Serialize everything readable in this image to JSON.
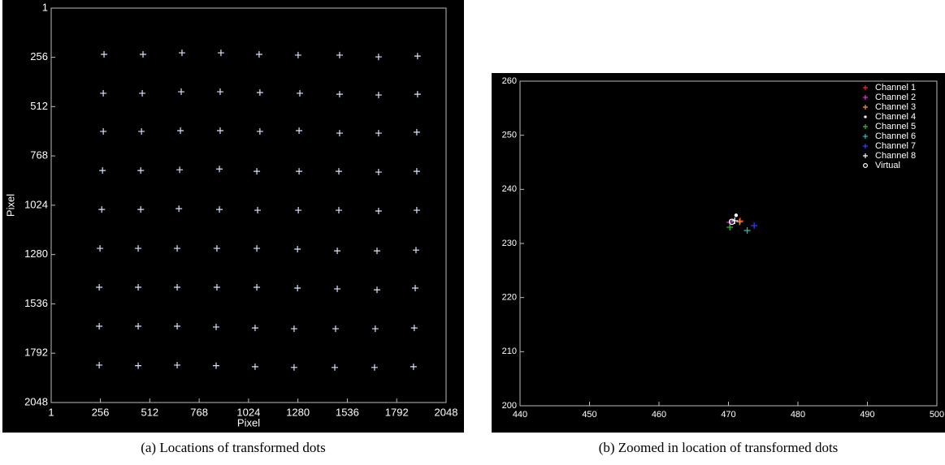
{
  "chart_data": [
    {
      "type": "scatter",
      "xlabel": "Pixel",
      "ylabel": "Pixel",
      "caption": "(a) Locations of transformed dots",
      "xlim": [
        1,
        2048
      ],
      "ylim": [
        1,
        2048
      ],
      "y_reversed": true,
      "xticks": [
        1,
        256,
        512,
        768,
        1024,
        1280,
        1536,
        1792,
        2048
      ],
      "yticks": [
        1,
        256,
        512,
        768,
        1024,
        1280,
        1536,
        1792,
        2048
      ],
      "series": [
        {
          "color": "#d6e2ff",
          "marker": "+",
          "x": [
            275,
            477,
            679,
            881,
            1079,
            1281,
            1496,
            1698,
            1900,
            271,
            473,
            675,
            877,
            1083,
            1290,
            1496,
            1698,
            1900,
            271,
            469,
            671,
            877,
            1083,
            1286,
            1496,
            1698,
            1896,
            267,
            465,
            667,
            873,
            1067,
            1286,
            1492,
            1698,
            1896,
            263,
            465,
            663,
            873,
            1071,
            1282,
            1492,
            1698,
            1896,
            254,
            452,
            654,
            860,
            1067,
            1278,
            1484,
            1690,
            1892,
            250,
            452,
            654,
            860,
            1067,
            1278,
            1484,
            1690,
            1888,
            250,
            452,
            654,
            856,
            1058,
            1260,
            1475,
            1681,
            1883,
            250,
            452,
            654,
            856,
            1058,
            1260,
            1471,
            1677,
            1879
          ],
          "y": [
            241,
            241,
            233,
            233,
            241,
            245,
            245,
            254,
            250,
            443,
            443,
            435,
            435,
            439,
            443,
            448,
            452,
            448,
            641,
            641,
            637,
            637,
            641,
            637,
            650,
            650,
            645,
            844,
            844,
            840,
            836,
            848,
            848,
            848,
            852,
            848,
            1046,
            1046,
            1042,
            1046,
            1050,
            1050,
            1050,
            1054,
            1050,
            1248,
            1248,
            1248,
            1248,
            1248,
            1252,
            1261,
            1261,
            1257,
            1450,
            1450,
            1450,
            1450,
            1450,
            1454,
            1458,
            1463,
            1454,
            1652,
            1652,
            1652,
            1656,
            1661,
            1665,
            1665,
            1665,
            1661,
            1854,
            1857,
            1854,
            1857,
            1862,
            1866,
            1866,
            1866,
            1862
          ]
        }
      ]
    },
    {
      "type": "scatter",
      "caption": "(b) Zoomed in location of transformed dots",
      "xlim": [
        440,
        500
      ],
      "ylim": [
        200,
        260
      ],
      "legend": "upper right",
      "xticks": [
        440,
        450,
        460,
        470,
        480,
        490,
        500
      ],
      "yticks": [
        200,
        210,
        220,
        230,
        240,
        250,
        260
      ],
      "series": [
        {
          "name": "Channel 1",
          "color": "#ff2020",
          "marker": "+",
          "x": [
            471.7
          ],
          "y": [
            234.2
          ]
        },
        {
          "name": "Channel 2",
          "color": "#e030e0",
          "marker": "+",
          "x": [
            470.2
          ],
          "y": [
            233.9
          ]
        },
        {
          "name": "Channel 3",
          "color": "#f0a020",
          "marker": "+",
          "x": [
            471.6
          ],
          "y": [
            234.0
          ]
        },
        {
          "name": "Channel 4",
          "color": "#ffffff",
          "marker": "*",
          "x": [
            471.1
          ],
          "y": [
            235.2
          ]
        },
        {
          "name": "Channel 5",
          "color": "#30c030",
          "marker": "+",
          "x": [
            470.2
          ],
          "y": [
            233.0
          ]
        },
        {
          "name": "Channel 6",
          "color": "#20c0c0",
          "marker": "+",
          "x": [
            472.7
          ],
          "y": [
            232.4
          ]
        },
        {
          "name": "Channel 7",
          "color": "#3040ff",
          "marker": "+",
          "x": [
            473.7
          ],
          "y": [
            233.3
          ]
        },
        {
          "name": "Channel 8",
          "color": "#ffffff",
          "marker": "+",
          "x": [
            470.9
          ],
          "y": [
            234.2
          ]
        },
        {
          "name": "Virtual",
          "color": "#ffffff",
          "marker": "o",
          "x": [
            470.5
          ],
          "y": [
            234.0
          ]
        }
      ]
    }
  ]
}
